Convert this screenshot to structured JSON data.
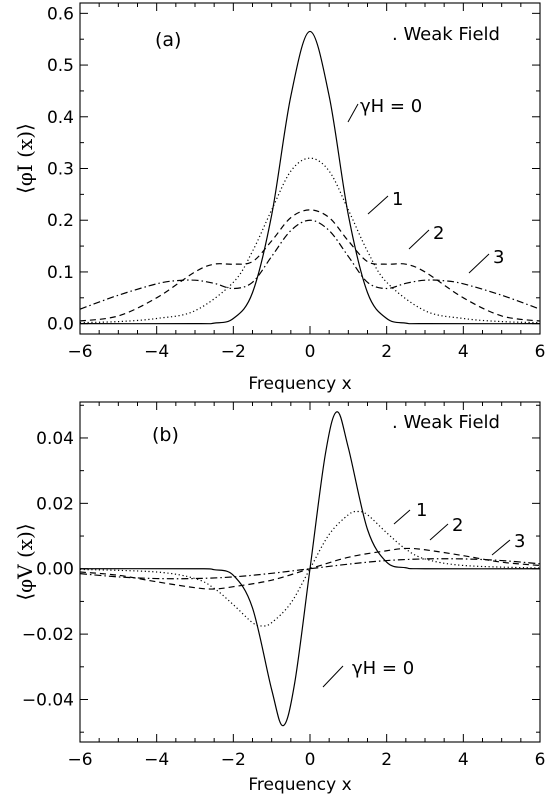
{
  "chart_data": [
    {
      "type": "line",
      "panel_label": "(a)",
      "annotation": "Weak Field",
      "xlabel": "Frequency x",
      "ylabel": "⟨φI (x)⟩",
      "xlim": [
        -6,
        6
      ],
      "ylim": [
        -0.02,
        0.62
      ],
      "xticks": [
        -6,
        -4,
        -2,
        0,
        2,
        4,
        6
      ],
      "yticks": [
        0.0,
        0.1,
        0.2,
        0.3,
        0.4,
        0.5,
        0.6
      ],
      "ytick_labels": [
        "0.0",
        "0.1",
        "0.2",
        "0.3",
        "0.4",
        "0.5",
        "0.6"
      ],
      "series": [
        {
          "name": "γH = 0",
          "style": "solid",
          "x": [
            -6,
            -3,
            -2.5,
            -2,
            -1.5,
            -1,
            -0.5,
            0,
            0.5,
            1,
            1.5,
            2,
            2.5,
            3,
            6
          ],
          "y": [
            0.0,
            0.0,
            0.001,
            0.01,
            0.06,
            0.21,
            0.44,
            0.565,
            0.44,
            0.21,
            0.06,
            0.01,
            0.001,
            0.0,
            0.0
          ]
        },
        {
          "name": "1",
          "style": "dotted",
          "x": [
            -6,
            -5,
            -4,
            -3,
            -2,
            -1.5,
            -1,
            -0.5,
            0,
            0.5,
            1,
            1.5,
            2,
            3,
            4,
            5,
            6
          ],
          "y": [
            0.002,
            0.004,
            0.01,
            0.025,
            0.08,
            0.14,
            0.22,
            0.295,
            0.32,
            0.295,
            0.22,
            0.14,
            0.08,
            0.025,
            0.01,
            0.004,
            0.002
          ]
        },
        {
          "name": "2",
          "style": "dashed",
          "x": [
            -6,
            -5,
            -4,
            -3,
            -2.5,
            -2,
            -1.5,
            -1,
            -0.5,
            0,
            0.5,
            1,
            1.5,
            2,
            2.5,
            3,
            4,
            5,
            6
          ],
          "y": [
            0.005,
            0.015,
            0.05,
            0.1,
            0.115,
            0.115,
            0.12,
            0.16,
            0.205,
            0.22,
            0.205,
            0.16,
            0.12,
            0.115,
            0.115,
            0.1,
            0.05,
            0.015,
            0.005
          ]
        },
        {
          "name": "3",
          "style": "dashdot",
          "x": [
            -6,
            -5,
            -4,
            -3.5,
            -3,
            -2.5,
            -2,
            -1.5,
            -1,
            -0.5,
            0,
            0.5,
            1,
            1.5,
            2,
            2.5,
            3,
            3.5,
            4,
            5,
            6
          ],
          "y": [
            0.028,
            0.055,
            0.077,
            0.083,
            0.084,
            0.078,
            0.068,
            0.08,
            0.13,
            0.18,
            0.2,
            0.18,
            0.13,
            0.08,
            0.068,
            0.078,
            0.084,
            0.083,
            0.077,
            0.055,
            0.028
          ]
        }
      ],
      "curve_labels": [
        {
          "series": 0,
          "text": "γH  =  0"
        },
        {
          "series": 1,
          "text": "1"
        },
        {
          "series": 2,
          "text": "2"
        },
        {
          "series": 3,
          "text": "3"
        }
      ]
    },
    {
      "type": "line",
      "panel_label": "(b)",
      "annotation": "Weak Field",
      "xlabel": "Frequency x",
      "ylabel": "⟨φV (x)⟩",
      "xlim": [
        -6,
        6
      ],
      "ylim": [
        -0.053,
        0.051
      ],
      "xticks": [
        -6,
        -4,
        -2,
        0,
        2,
        4,
        6
      ],
      "yticks": [
        -0.04,
        -0.02,
        0.0,
        0.02,
        0.04
      ],
      "ytick_labels": [
        "−0.04",
        "−0.02",
        "0.00",
        "0.02",
        "0.04"
      ],
      "series": [
        {
          "name": "γH = 0",
          "style": "solid",
          "x": [
            -6,
            -3,
            -2.5,
            -2,
            -1.5,
            -1,
            -0.7,
            -0.4,
            0,
            0.4,
            0.7,
            1,
            1.5,
            2,
            2.5,
            3,
            6
          ],
          "y": [
            0.0,
            0.0,
            -0.0003,
            -0.002,
            -0.012,
            -0.037,
            -0.048,
            -0.035,
            0.0,
            0.035,
            0.048,
            0.037,
            0.012,
            0.002,
            0.0003,
            0.0,
            0.0
          ]
        },
        {
          "name": "1",
          "style": "dotted",
          "x": [
            -6,
            -4,
            -3,
            -2.5,
            -2,
            -1.5,
            -1.25,
            -1,
            -0.5,
            0,
            0.5,
            1,
            1.25,
            1.5,
            2,
            2.5,
            3,
            4,
            6
          ],
          "y": [
            -0.0002,
            -0.001,
            -0.003,
            -0.006,
            -0.011,
            -0.0165,
            -0.0175,
            -0.0165,
            -0.0105,
            0.0,
            0.0105,
            0.0165,
            0.0175,
            0.0165,
            0.011,
            0.006,
            0.003,
            0.001,
            0.0002
          ]
        },
        {
          "name": "2",
          "style": "dashed",
          "x": [
            -6,
            -5,
            -4,
            -3,
            -2.5,
            -2,
            -1,
            0,
            1,
            2,
            2.5,
            3,
            4,
            5,
            6
          ],
          "y": [
            -0.001,
            -0.002,
            -0.004,
            -0.0058,
            -0.0062,
            -0.0055,
            -0.0035,
            0.0,
            0.0035,
            0.0055,
            0.0062,
            0.0058,
            0.004,
            0.002,
            0.001
          ]
        },
        {
          "name": "3",
          "style": "dashdot",
          "x": [
            -6,
            -5,
            -4,
            -3,
            -2,
            -1,
            0,
            1,
            2,
            3,
            4,
            5,
            6
          ],
          "y": [
            -0.0015,
            -0.0025,
            -0.003,
            -0.003,
            -0.0025,
            -0.0014,
            0.0,
            0.0014,
            0.0025,
            0.003,
            0.003,
            0.0025,
            0.0015
          ]
        }
      ],
      "curve_labels": [
        {
          "series": 0,
          "text": "γH  =  0"
        },
        {
          "series": 1,
          "text": "1"
        },
        {
          "series": 2,
          "text": "2"
        },
        {
          "series": 3,
          "text": "3"
        }
      ]
    }
  ]
}
